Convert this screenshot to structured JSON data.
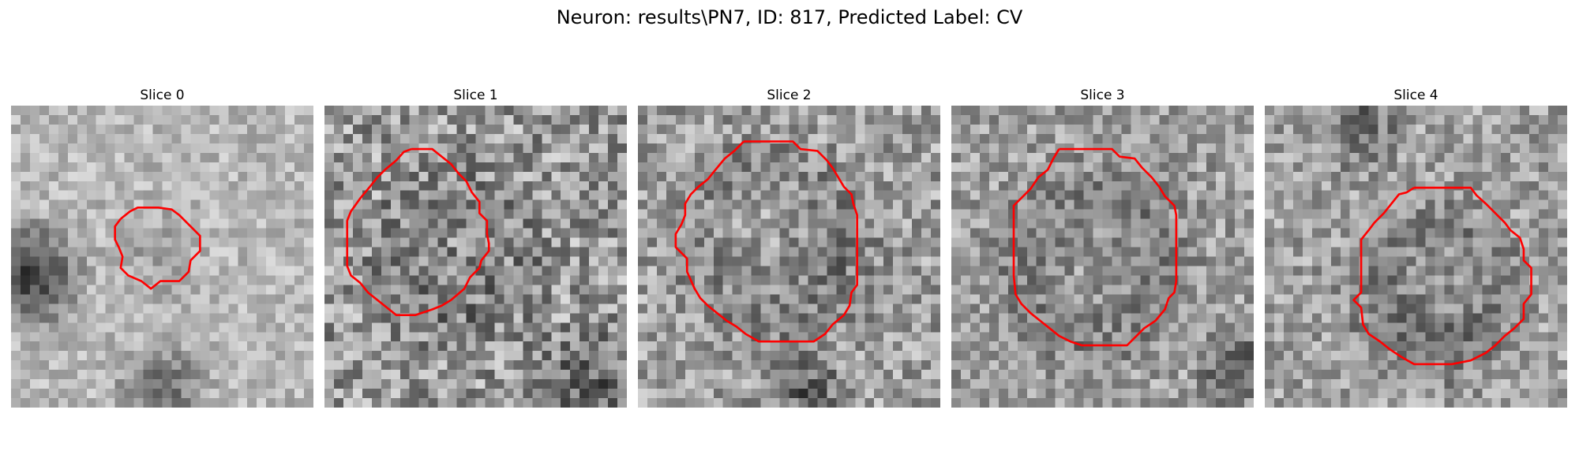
{
  "figure": {
    "title": "Neuron: results\\PN7, ID: 817, Predicted Label: CV"
  },
  "colors": {
    "background": "#ffffff",
    "contour": "#ff0000"
  },
  "grid": {
    "pixels_per_side": 32
  },
  "panels": [
    {
      "title": "Slice 0",
      "seed": 11,
      "blobs": [
        {
          "cx": 2,
          "cy": 18,
          "r": 7,
          "delta": -0.55
        },
        {
          "cx": 16,
          "cy": 30,
          "r": 6,
          "delta": -0.35
        },
        {
          "cx": 15,
          "cy": 16,
          "r": 6,
          "delta": -0.1
        }
      ],
      "base": 0.72,
      "noise": 0.14,
      "contour": [
        [
          11.6,
          12.0
        ],
        [
          11.0,
          12.8
        ],
        [
          11.0,
          14.2
        ],
        [
          11.4,
          15.0
        ],
        [
          11.8,
          16.0
        ],
        [
          11.6,
          17.2
        ],
        [
          12.4,
          18.0
        ],
        [
          13.8,
          18.6
        ],
        [
          14.8,
          19.4
        ],
        [
          15.8,
          18.6
        ],
        [
          17.8,
          18.6
        ],
        [
          18.8,
          17.6
        ],
        [
          19.0,
          16.4
        ],
        [
          20.0,
          15.4
        ],
        [
          20.0,
          13.8
        ],
        [
          18.8,
          12.6
        ],
        [
          17.8,
          11.6
        ],
        [
          17.0,
          11.0
        ],
        [
          15.6,
          10.8
        ],
        [
          13.4,
          10.8
        ],
        [
          12.6,
          11.2
        ],
        [
          11.6,
          12.0
        ]
      ]
    },
    {
      "title": "Slice 1",
      "seed": 23,
      "blobs": [
        {
          "cx": 14,
          "cy": 16,
          "r": 11,
          "delta": -0.3
        },
        {
          "cx": 14,
          "cy": 15,
          "r": 8,
          "delta": 0.25
        },
        {
          "cx": 28,
          "cy": 31,
          "r": 9,
          "delta": -0.25
        }
      ],
      "base": 0.6,
      "noise": 0.26,
      "contour": [
        [
          9.2,
          4.6
        ],
        [
          11.4,
          4.6
        ],
        [
          12.4,
          5.4
        ],
        [
          13.4,
          6.2
        ],
        [
          14.2,
          7.2
        ],
        [
          15.0,
          8.0
        ],
        [
          15.6,
          9.2
        ],
        [
          16.4,
          10.2
        ],
        [
          16.4,
          11.4
        ],
        [
          17.2,
          12.2
        ],
        [
          17.2,
          13.6
        ],
        [
          17.4,
          14.6
        ],
        [
          17.4,
          15.4
        ],
        [
          16.6,
          16.4
        ],
        [
          16.4,
          17.2
        ],
        [
          15.4,
          18.2
        ],
        [
          14.8,
          19.4
        ],
        [
          13.4,
          20.6
        ],
        [
          12.4,
          21.2
        ],
        [
          11.4,
          21.6
        ],
        [
          9.6,
          22.2
        ],
        [
          7.6,
          22.2
        ],
        [
          6.6,
          21.4
        ],
        [
          5.6,
          20.6
        ],
        [
          4.6,
          19.8
        ],
        [
          3.8,
          18.8
        ],
        [
          2.8,
          18.0
        ],
        [
          2.4,
          17.0
        ],
        [
          2.4,
          15.8
        ],
        [
          2.4,
          13.6
        ],
        [
          2.4,
          12.2
        ],
        [
          2.8,
          11.2
        ],
        [
          3.8,
          9.8
        ],
        [
          4.8,
          8.6
        ],
        [
          5.6,
          7.6
        ],
        [
          6.4,
          6.8
        ],
        [
          7.6,
          5.8
        ],
        [
          8.4,
          4.9
        ],
        [
          9.2,
          4.6
        ]
      ]
    },
    {
      "title": "Slice 2",
      "seed": 37,
      "blobs": [
        {
          "cx": 15,
          "cy": 15,
          "r": 13,
          "delta": -0.28
        },
        {
          "cx": 14,
          "cy": 14,
          "r": 8,
          "delta": 0.3
        },
        {
          "cx": 18,
          "cy": 30,
          "r": 5,
          "delta": -0.3
        }
      ],
      "base": 0.62,
      "noise": 0.22,
      "contour": [
        [
          11.2,
          3.8
        ],
        [
          16.4,
          3.8
        ],
        [
          17.2,
          4.6
        ],
        [
          19.0,
          4.8
        ],
        [
          20.0,
          5.8
        ],
        [
          20.6,
          6.6
        ],
        [
          21.2,
          7.6
        ],
        [
          21.8,
          8.6
        ],
        [
          22.6,
          9.4
        ],
        [
          22.8,
          10.4
        ],
        [
          23.2,
          11.6
        ],
        [
          23.2,
          14.6
        ],
        [
          23.2,
          19.0
        ],
        [
          22.6,
          19.8
        ],
        [
          22.4,
          21.2
        ],
        [
          21.8,
          22.2
        ],
        [
          20.6,
          23.2
        ],
        [
          19.8,
          24.2
        ],
        [
          18.6,
          25.0
        ],
        [
          12.8,
          25.0
        ],
        [
          11.4,
          24.2
        ],
        [
          10.4,
          23.4
        ],
        [
          9.4,
          22.8
        ],
        [
          8.4,
          22.0
        ],
        [
          7.4,
          21.2
        ],
        [
          6.6,
          20.4
        ],
        [
          6.0,
          19.4
        ],
        [
          5.2,
          17.6
        ],
        [
          5.2,
          16.2
        ],
        [
          4.0,
          15.0
        ],
        [
          4.0,
          13.6
        ],
        [
          4.6,
          12.6
        ],
        [
          5.0,
          11.6
        ],
        [
          5.0,
          10.4
        ],
        [
          5.6,
          9.4
        ],
        [
          6.4,
          8.6
        ],
        [
          7.4,
          7.8
        ],
        [
          8.2,
          6.8
        ],
        [
          9.2,
          5.6
        ],
        [
          10.2,
          4.8
        ],
        [
          11.2,
          3.8
        ]
      ]
    },
    {
      "title": "Slice 3",
      "seed": 53,
      "blobs": [
        {
          "cx": 15,
          "cy": 17,
          "r": 13,
          "delta": -0.3
        },
        {
          "cx": 15,
          "cy": 17,
          "r": 8,
          "delta": 0.3
        },
        {
          "cx": 30,
          "cy": 28,
          "r": 5,
          "delta": -0.35
        }
      ],
      "base": 0.62,
      "noise": 0.2,
      "contour": [
        [
          11.4,
          4.6
        ],
        [
          17.0,
          4.6
        ],
        [
          17.8,
          5.4
        ],
        [
          19.4,
          5.6
        ],
        [
          20.2,
          6.6
        ],
        [
          21.2,
          7.6
        ],
        [
          22.0,
          8.6
        ],
        [
          22.6,
          9.6
        ],
        [
          23.6,
          10.6
        ],
        [
          23.8,
          11.6
        ],
        [
          23.8,
          15.8
        ],
        [
          23.8,
          18.6
        ],
        [
          23.6,
          19.8
        ],
        [
          23.0,
          20.4
        ],
        [
          22.6,
          21.6
        ],
        [
          21.6,
          22.8
        ],
        [
          20.4,
          23.6
        ],
        [
          19.6,
          24.4
        ],
        [
          18.6,
          25.4
        ],
        [
          13.8,
          25.4
        ],
        [
          12.6,
          25.0
        ],
        [
          11.4,
          24.4
        ],
        [
          10.4,
          23.6
        ],
        [
          9.4,
          22.8
        ],
        [
          8.4,
          22.0
        ],
        [
          7.4,
          21.0
        ],
        [
          6.8,
          20.0
        ],
        [
          6.6,
          18.0
        ],
        [
          6.6,
          14.2
        ],
        [
          6.6,
          10.6
        ],
        [
          7.6,
          9.6
        ],
        [
          8.4,
          8.8
        ],
        [
          9.2,
          7.6
        ],
        [
          10.2,
          6.8
        ],
        [
          10.8,
          5.6
        ],
        [
          11.4,
          4.6
        ]
      ]
    },
    {
      "title": "Slice 4",
      "seed": 71,
      "blobs": [
        {
          "cx": 18,
          "cy": 20,
          "r": 12,
          "delta": -0.3
        },
        {
          "cx": 18,
          "cy": 19,
          "r": 6,
          "delta": 0.28
        },
        {
          "cx": 10,
          "cy": 2,
          "r": 6,
          "delta": -0.25
        }
      ],
      "base": 0.63,
      "noise": 0.2,
      "contour": [
        [
          15.8,
          8.7
        ],
        [
          21.8,
          8.7
        ],
        [
          22.4,
          9.5
        ],
        [
          23.4,
          10.4
        ],
        [
          24.4,
          11.4
        ],
        [
          25.4,
          12.4
        ],
        [
          26.0,
          13.2
        ],
        [
          27.0,
          14.0
        ],
        [
          27.4,
          15.2
        ],
        [
          27.4,
          16.4
        ],
        [
          28.2,
          17.2
        ],
        [
          28.2,
          20.0
        ],
        [
          27.4,
          21.0
        ],
        [
          27.4,
          22.6
        ],
        [
          26.4,
          23.6
        ],
        [
          25.4,
          24.4
        ],
        [
          24.4,
          25.4
        ],
        [
          23.4,
          26.2
        ],
        [
          21.8,
          27.0
        ],
        [
          19.8,
          27.4
        ],
        [
          15.8,
          27.4
        ],
        [
          14.4,
          26.6
        ],
        [
          13.2,
          25.8
        ],
        [
          12.2,
          25.0
        ],
        [
          11.0,
          24.2
        ],
        [
          10.4,
          23.2
        ],
        [
          10.2,
          21.4
        ],
        [
          9.4,
          20.6
        ],
        [
          10.2,
          19.8
        ],
        [
          10.2,
          17.6
        ],
        [
          10.2,
          14.2
        ],
        [
          11.0,
          13.2
        ],
        [
          11.6,
          12.4
        ],
        [
          12.6,
          11.4
        ],
        [
          13.4,
          10.4
        ],
        [
          14.2,
          9.4
        ],
        [
          15.0,
          9.2
        ],
        [
          15.8,
          8.7
        ]
      ]
    }
  ]
}
